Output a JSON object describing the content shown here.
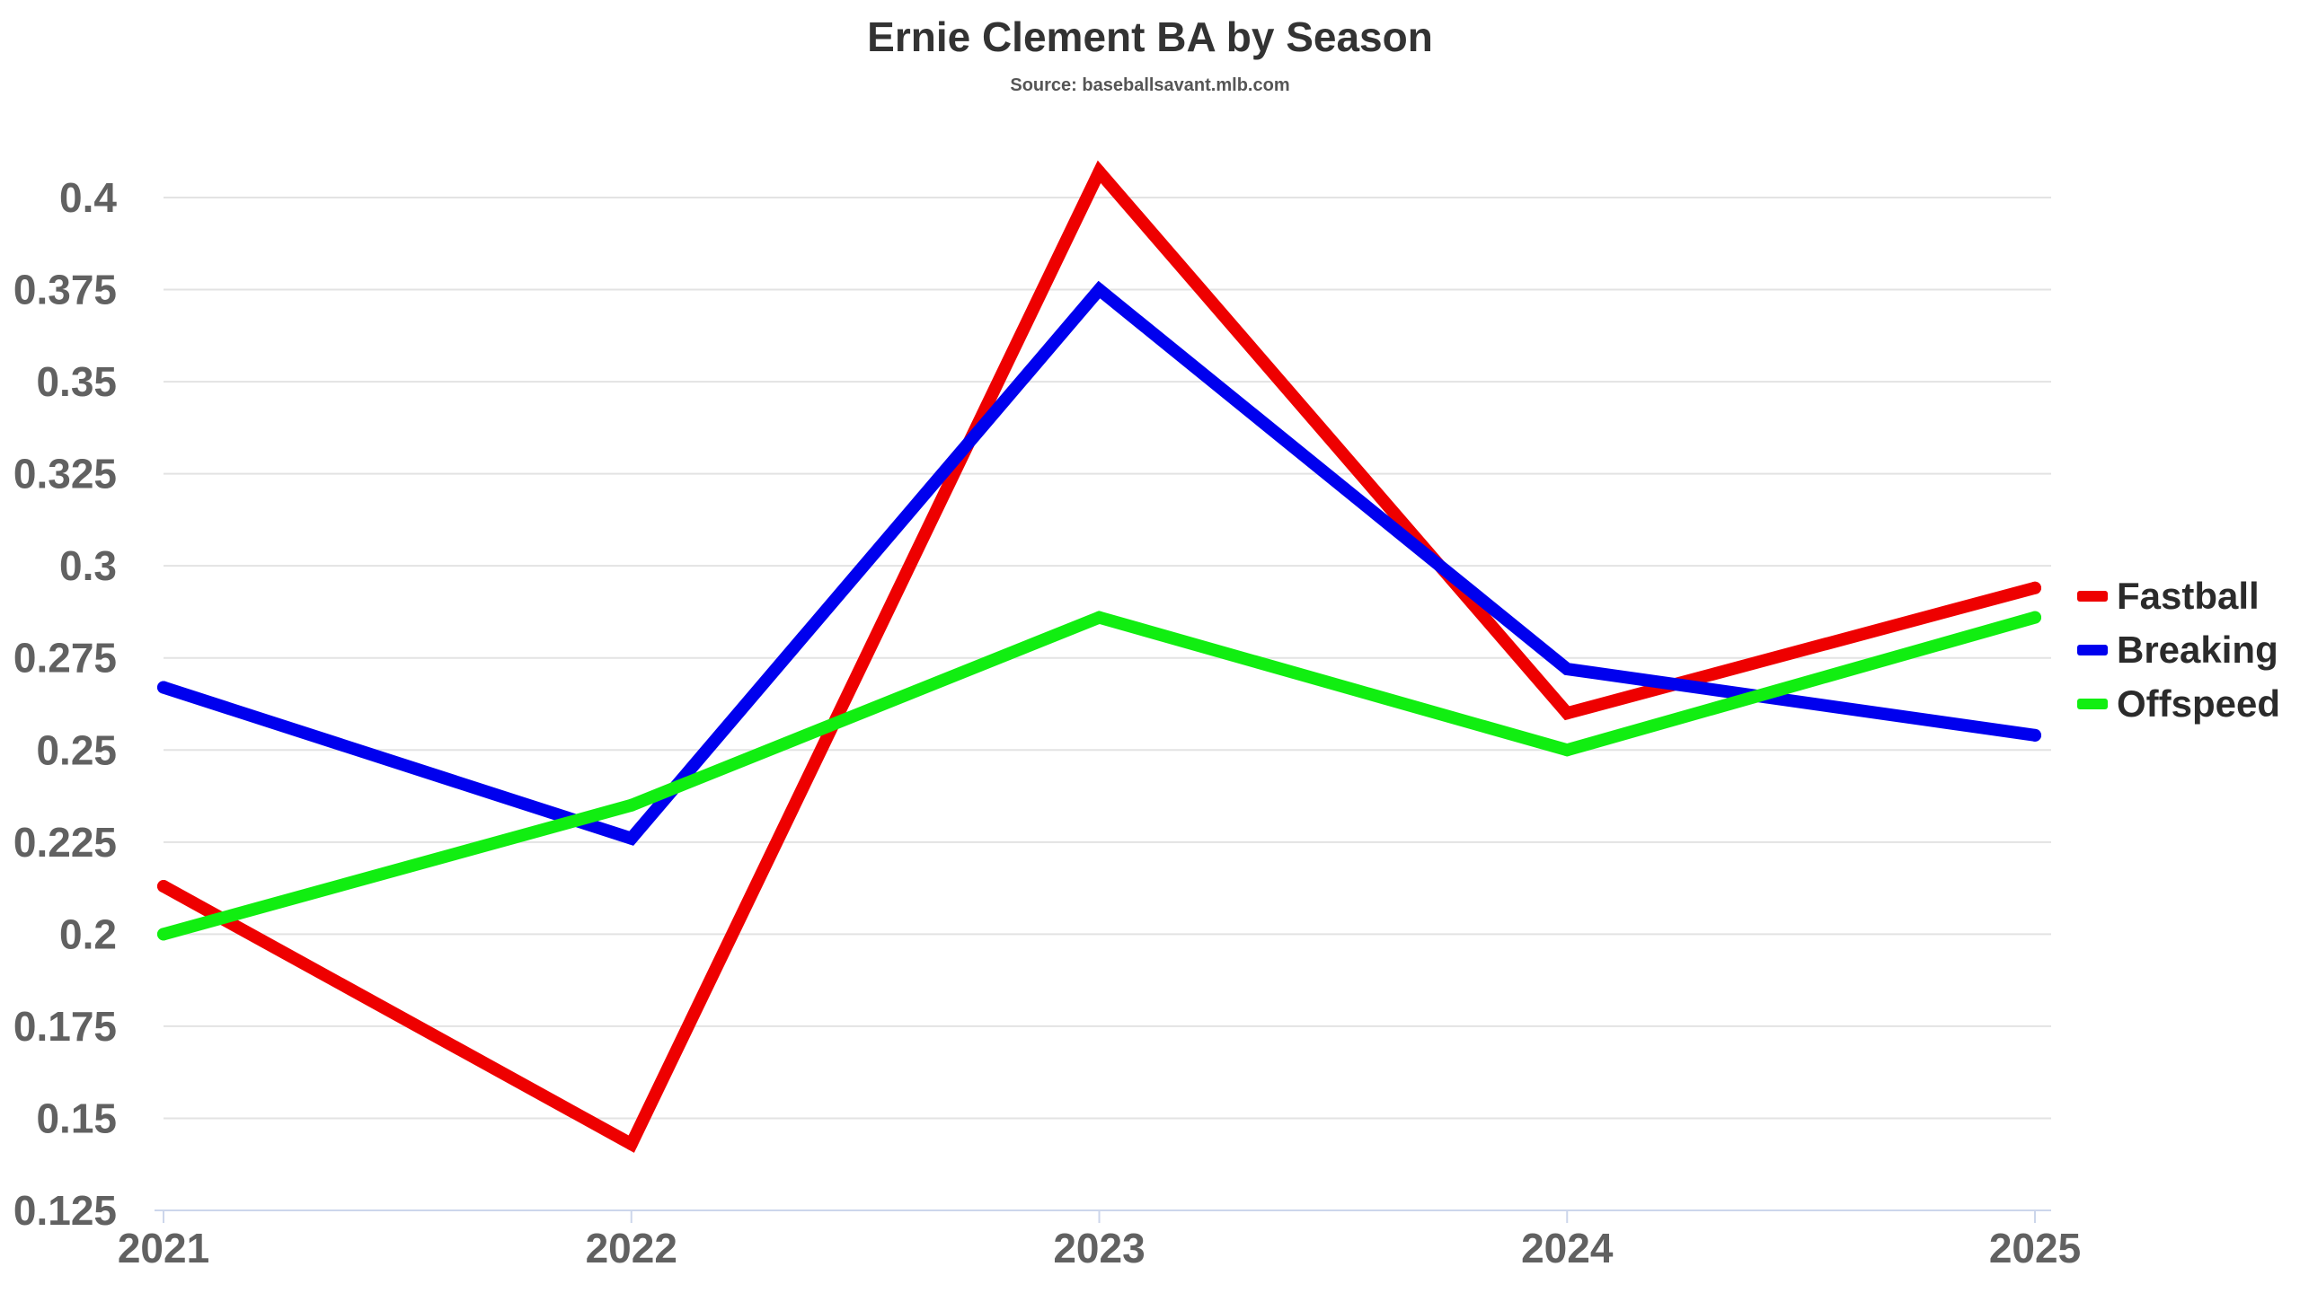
{
  "title": "Ernie Clement BA by Season",
  "subtitle": "Source: baseballsavant.mlb.com",
  "chart_data": {
    "type": "line",
    "title": "Ernie Clement BA by Season",
    "subtitle": "Source: baseballsavant.mlb.com",
    "x": [
      "2021",
      "2022",
      "2023",
      "2024",
      "2025"
    ],
    "ylim": [
      0.125,
      0.4
    ],
    "yticks": [
      "0.125",
      "0.15",
      "0.175",
      "0.2",
      "0.225",
      "0.25",
      "0.275",
      "0.3",
      "0.325",
      "0.35",
      "0.375",
      "0.4"
    ],
    "grid": true,
    "legend_position": "right",
    "series": [
      {
        "name": "Fastball",
        "color": "#ee0000",
        "values": [
          0.213,
          0.143,
          0.407,
          0.26,
          0.294
        ]
      },
      {
        "name": "Breaking",
        "color": "#0000ee",
        "values": [
          0.267,
          0.226,
          0.375,
          0.272,
          0.254
        ]
      },
      {
        "name": "Offspeed",
        "color": "#11ee11",
        "values": [
          0.2,
          0.235,
          0.286,
          0.25,
          0.286
        ]
      }
    ]
  }
}
